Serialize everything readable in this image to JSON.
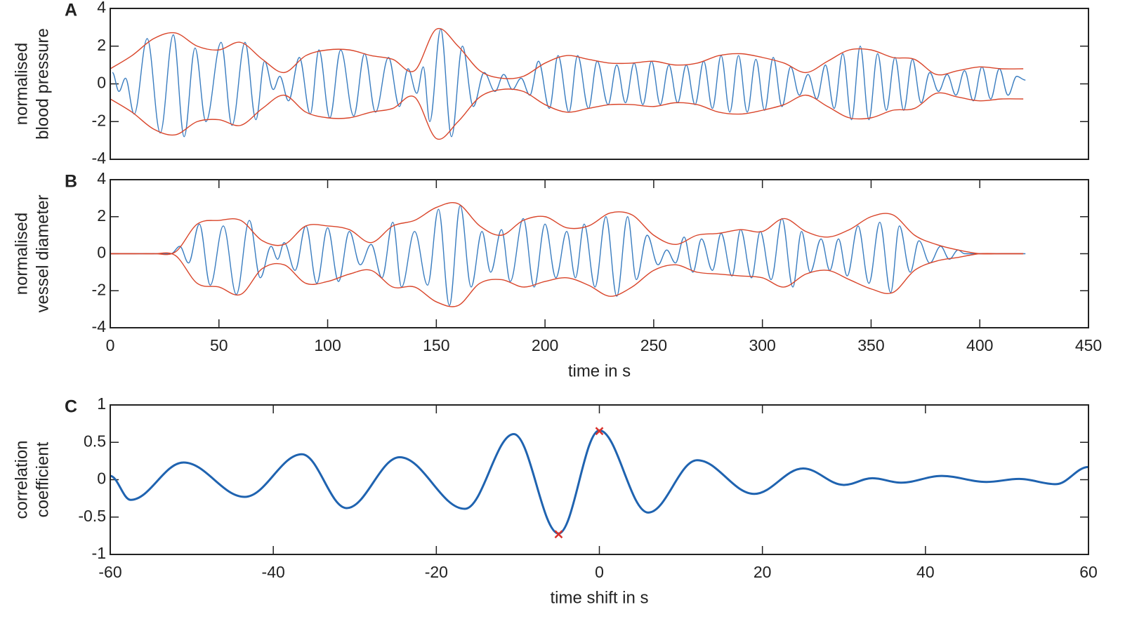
{
  "chart_data": [
    {
      "type": "line",
      "panel": "A",
      "ylabel": [
        "normalised",
        "blood pressure"
      ],
      "xlim": [
        0,
        450
      ],
      "ylim": [
        -4,
        4
      ],
      "yticks": [
        -4,
        -2,
        0,
        2,
        4
      ],
      "series": [
        {
          "color": "#3a7dc0",
          "interpolation": "extrema",
          "x": [
            1,
            4,
            7,
            11,
            17,
            23,
            29,
            34,
            39,
            44,
            51,
            56,
            62,
            67,
            71,
            75,
            78,
            82,
            87,
            92,
            96,
            101,
            106,
            112,
            117,
            122,
            128,
            133,
            137,
            141,
            144,
            147,
            152,
            157,
            162,
            167,
            172,
            177,
            181,
            185,
            189,
            193,
            197,
            202,
            206,
            211,
            215,
            220,
            224,
            229,
            233,
            237,
            241,
            245,
            249,
            253,
            257,
            261,
            265,
            269,
            273,
            277,
            281,
            285,
            289,
            293,
            297,
            301,
            305,
            309,
            313,
            317,
            321,
            325,
            329,
            333,
            337,
            341,
            345,
            349,
            353,
            357,
            361,
            365,
            369,
            373,
            377,
            381,
            385,
            389,
            393,
            397,
            401,
            405,
            409,
            413,
            417,
            421
          ],
          "values": [
            0.6,
            -0.4,
            0.3,
            -1.6,
            2.4,
            -2.6,
            2.6,
            -2.8,
            1.9,
            -2.0,
            2.2,
            -2.2,
            2.2,
            -1.9,
            1.2,
            -0.3,
            0.4,
            -0.9,
            1.4,
            -1.6,
            1.8,
            -1.8,
            1.8,
            -1.7,
            1.6,
            -1.5,
            1.4,
            -1.2,
            0.8,
            -0.5,
            0.9,
            -2.0,
            2.9,
            -2.8,
            2.0,
            -1.2,
            0.6,
            -0.4,
            0.5,
            -0.3,
            0.3,
            -0.6,
            1.2,
            -1.3,
            1.5,
            -1.5,
            1.5,
            -1.3,
            1.2,
            -1.1,
            1.0,
            -1.0,
            1.1,
            -1.1,
            1.2,
            -1.1,
            1.0,
            -1.0,
            1.0,
            -1.1,
            1.2,
            -1.3,
            1.5,
            -1.5,
            1.5,
            -1.5,
            1.3,
            -1.4,
            1.4,
            -1.2,
            0.9,
            -0.6,
            0.5,
            -0.8,
            1.0,
            -1.3,
            1.6,
            -1.9,
            2.0,
            -1.9,
            1.6,
            -1.4,
            1.4,
            -1.4,
            1.3,
            -1.0,
            0.6,
            -0.4,
            0.5,
            -0.6,
            0.7,
            -0.9,
            0.9,
            -0.8,
            0.8,
            -0.6,
            0.4,
            0.2
          ]
        },
        {
          "color": "#d9452a",
          "interpolation": "spline",
          "x": [
            0,
            10,
            20,
            30,
            40,
            50,
            60,
            70,
            80,
            90,
            100,
            110,
            120,
            130,
            140,
            150,
            160,
            170,
            180,
            190,
            200,
            210,
            220,
            230,
            240,
            250,
            260,
            270,
            280,
            290,
            300,
            310,
            320,
            330,
            340,
            350,
            360,
            370,
            380,
            390,
            400,
            410,
            420
          ],
          "values": [
            0.8,
            1.5,
            2.4,
            2.7,
            2.0,
            1.8,
            2.2,
            1.3,
            0.6,
            1.5,
            1.8,
            1.8,
            1.5,
            1.3,
            0.7,
            2.9,
            2.0,
            0.7,
            0.3,
            0.4,
            1.1,
            1.5,
            1.3,
            1.1,
            1.1,
            1.2,
            1.0,
            1.1,
            1.5,
            1.6,
            1.4,
            1.1,
            0.6,
            1.2,
            1.8,
            1.8,
            1.4,
            1.3,
            0.5,
            0.7,
            0.9,
            0.8,
            0.8
          ]
        },
        {
          "color": "#d9452a",
          "interpolation": "spline",
          "x": [
            0,
            10,
            20,
            30,
            40,
            50,
            60,
            70,
            80,
            90,
            100,
            110,
            120,
            130,
            140,
            150,
            160,
            170,
            180,
            190,
            200,
            210,
            220,
            230,
            240,
            250,
            260,
            270,
            280,
            290,
            300,
            310,
            320,
            330,
            340,
            350,
            360,
            370,
            380,
            390,
            400,
            410,
            420
          ],
          "values": [
            -0.8,
            -1.5,
            -2.4,
            -2.7,
            -2.0,
            -1.9,
            -2.2,
            -1.3,
            -0.6,
            -1.5,
            -1.8,
            -1.8,
            -1.5,
            -1.3,
            -0.7,
            -2.9,
            -2.0,
            -0.7,
            -0.3,
            -0.4,
            -1.1,
            -1.5,
            -1.3,
            -1.1,
            -1.1,
            -1.2,
            -1.0,
            -1.1,
            -1.5,
            -1.6,
            -1.4,
            -1.1,
            -0.6,
            -1.2,
            -1.8,
            -1.8,
            -1.4,
            -1.3,
            -0.5,
            -0.7,
            -0.9,
            -0.8,
            -0.8
          ]
        }
      ]
    },
    {
      "type": "line",
      "panel": "B",
      "ylabel": [
        "normalised",
        "vessel diameter"
      ],
      "xlabel": "time in s",
      "xlim": [
        0,
        450
      ],
      "ylim": [
        -4,
        4
      ],
      "xticks": [
        0,
        50,
        100,
        150,
        200,
        250,
        300,
        350,
        400,
        450
      ],
      "yticks": [
        -4,
        -2,
        0,
        2,
        4
      ],
      "series": [
        {
          "color": "#3a7dc0",
          "interpolation": "extrema",
          "x": [
            0,
            28,
            32,
            36,
            41,
            46,
            52,
            58,
            64,
            69,
            74,
            77,
            80,
            85,
            90,
            95,
            100,
            105,
            110,
            115,
            120,
            125,
            130,
            134,
            140,
            146,
            151,
            156,
            161,
            166,
            171,
            175,
            180,
            184,
            190,
            195,
            200,
            205,
            210,
            214,
            218,
            223,
            228,
            233,
            238,
            242,
            247,
            252,
            256,
            260,
            264,
            268,
            272,
            277,
            281,
            286,
            290,
            295,
            299,
            304,
            309,
            314,
            318,
            322,
            327,
            331,
            335,
            339,
            344,
            349,
            354,
            359,
            363,
            368,
            372,
            377,
            382,
            386,
            390,
            393,
            421
          ],
          "values": [
            0,
            0,
            0.4,
            -0.5,
            1.6,
            -1.7,
            1.5,
            -2.2,
            1.8,
            -1.3,
            0.4,
            -0.3,
            0.6,
            -0.9,
            1.5,
            -1.6,
            1.4,
            -1.5,
            1.2,
            -0.6,
            0.5,
            -1.3,
            1.7,
            -1.8,
            1.2,
            -1.7,
            2.4,
            -2.8,
            2.6,
            -1.8,
            1.2,
            -1.0,
            1.3,
            -1.5,
            1.9,
            -1.8,
            1.6,
            -1.3,
            1.2,
            -1.3,
            1.6,
            -1.8,
            2.0,
            -2.3,
            2.0,
            -1.4,
            1.0,
            -0.6,
            0.2,
            -0.5,
            0.9,
            -1.0,
            0.8,
            -0.9,
            1.1,
            -1.2,
            1.3,
            -1.3,
            1.2,
            -1.4,
            1.9,
            -1.8,
            1.2,
            -1.0,
            0.8,
            -0.9,
            0.8,
            -1.2,
            1.5,
            -1.6,
            1.7,
            -2.1,
            1.5,
            -1.0,
            0.7,
            -0.5,
            0.4,
            -0.3,
            0.2,
            0,
            0
          ]
        },
        {
          "color": "#d9452a",
          "interpolation": "spline",
          "x": [
            0,
            10,
            20,
            30,
            40,
            50,
            60,
            70,
            80,
            90,
            100,
            110,
            120,
            130,
            140,
            150,
            160,
            170,
            180,
            190,
            200,
            210,
            220,
            230,
            240,
            250,
            260,
            270,
            280,
            290,
            300,
            310,
            320,
            330,
            340,
            350,
            360,
            370,
            380,
            390,
            400,
            410,
            420
          ],
          "values": [
            0,
            0,
            0,
            0.1,
            1.6,
            1.8,
            1.8,
            0.7,
            0.5,
            1.5,
            1.5,
            1.3,
            0.6,
            1.5,
            1.8,
            2.5,
            2.7,
            1.5,
            1.0,
            1.8,
            2.0,
            1.4,
            1.5,
            2.2,
            2.1,
            1.0,
            0.5,
            1.0,
            1.1,
            1.3,
            1.2,
            1.9,
            1.2,
            0.9,
            1.3,
            2.0,
            2.1,
            1.0,
            0.5,
            0.2,
            0,
            0,
            0
          ]
        },
        {
          "color": "#d9452a",
          "interpolation": "spline",
          "x": [
            0,
            10,
            20,
            30,
            40,
            50,
            60,
            70,
            80,
            90,
            100,
            110,
            120,
            130,
            140,
            150,
            160,
            170,
            180,
            190,
            200,
            210,
            220,
            230,
            240,
            250,
            260,
            270,
            280,
            290,
            300,
            310,
            320,
            330,
            340,
            350,
            360,
            370,
            380,
            390,
            400,
            410,
            420
          ],
          "values": [
            0,
            0,
            0,
            -0.1,
            -1.6,
            -1.8,
            -2.2,
            -0.8,
            -0.6,
            -1.6,
            -1.5,
            -1.1,
            -0.9,
            -1.8,
            -1.8,
            -2.6,
            -2.8,
            -1.6,
            -1.4,
            -1.8,
            -1.5,
            -1.3,
            -1.7,
            -2.3,
            -1.8,
            -0.9,
            -0.6,
            -1.0,
            -1.1,
            -1.2,
            -1.3,
            -1.8,
            -1.1,
            -0.9,
            -1.4,
            -1.9,
            -2.1,
            -0.9,
            -0.4,
            -0.2,
            0,
            0,
            0
          ]
        }
      ]
    },
    {
      "type": "line",
      "panel": "C",
      "ylabel": [
        "correlation",
        "coefficient"
      ],
      "xlabel": "time shift in s",
      "xlim": [
        -60,
        60
      ],
      "ylim": [
        -1,
        1
      ],
      "xticks": [
        -60,
        -40,
        -20,
        0,
        20,
        40,
        60
      ],
      "yticks": [
        -1,
        -0.5,
        0,
        0.5,
        1
      ],
      "series": [
        {
          "color": "#1f63b0",
          "interpolation": "extrema",
          "x": [
            -60,
            -57.5,
            -51,
            -43.5,
            -36.5,
            -31,
            -24.5,
            -16.5,
            -10.5,
            -5,
            0,
            6,
            12,
            19,
            25,
            30,
            33.5,
            37,
            42,
            47.5,
            51.5,
            56,
            60
          ],
          "values": [
            0.05,
            -0.27,
            0.23,
            -0.23,
            0.34,
            -0.38,
            0.3,
            -0.39,
            0.61,
            -0.72,
            0.66,
            -0.44,
            0.26,
            -0.19,
            0.15,
            -0.07,
            0.02,
            -0.04,
            0.05,
            -0.03,
            0.01,
            -0.06,
            0.17
          ]
        },
        {
          "color": "#d9302a",
          "marker": "x",
          "x": [
            -5,
            0
          ],
          "values": [
            -0.73,
            0.65
          ]
        }
      ]
    }
  ]
}
